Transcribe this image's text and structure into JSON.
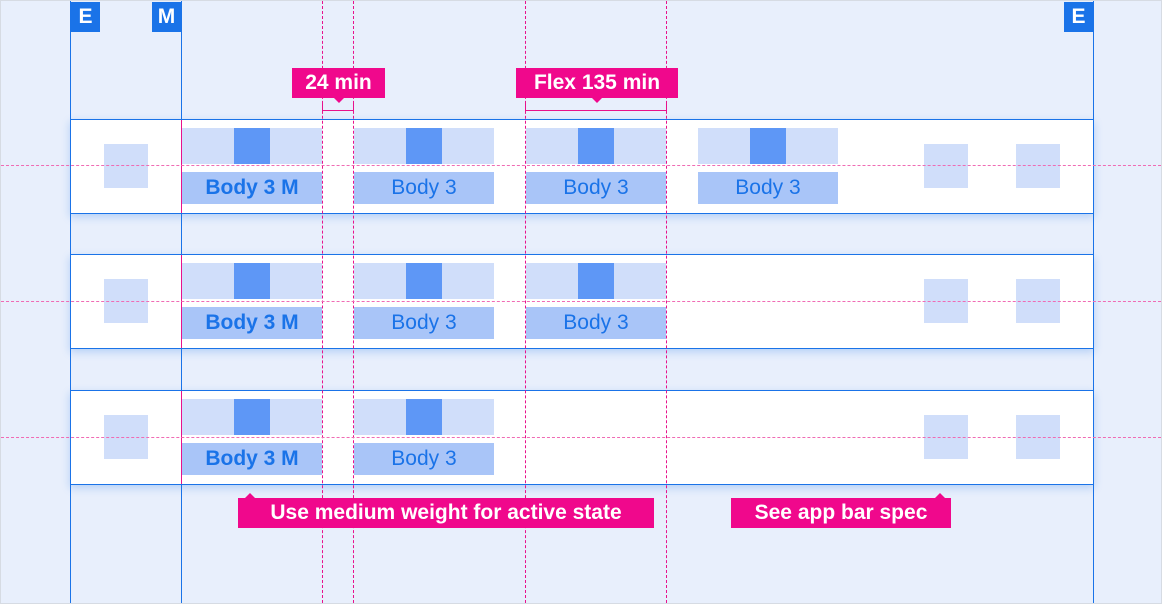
{
  "badges": {
    "edge": "E",
    "margin": "M"
  },
  "annotations": {
    "gap": "24 min",
    "flex": "Flex 135 min",
    "active_note": "Use medium weight for active state",
    "app_bar_note": "See app bar spec"
  },
  "rows": [
    {
      "tabs": [
        {
          "label": "Body 3 M",
          "active": true
        },
        {
          "label": "Body 3"
        },
        {
          "label": "Body 3"
        },
        {
          "label": "Body 3"
        }
      ]
    },
    {
      "tabs": [
        {
          "label": "Body 3 M",
          "active": true
        },
        {
          "label": "Body 3"
        },
        {
          "label": "Body 3"
        }
      ]
    },
    {
      "tabs": [
        {
          "label": "Body 3 M",
          "active": true
        },
        {
          "label": "Body 3"
        }
      ]
    }
  ],
  "colors": {
    "accent": "#1a73e8",
    "annotation": "#f0088c",
    "icon": "#5e97f6",
    "tab_bg": "#d0defa",
    "label_bg": "#a9c5f8"
  }
}
